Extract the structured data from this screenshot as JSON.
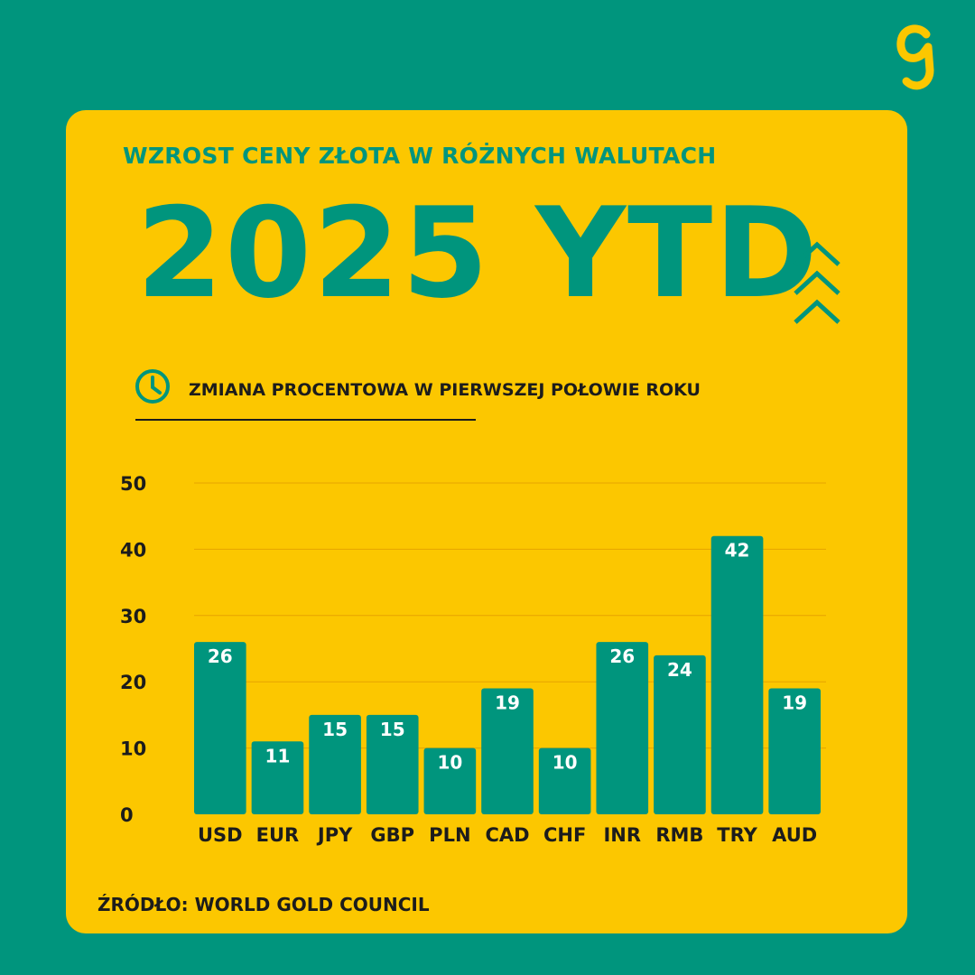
{
  "header": {
    "subtitle": "WZROST CENY ZŁOTA W RÓŻNYCH WALUTACH",
    "title": "2025 YTD",
    "caption": "ZMIANA PROCENTOWA W PIERWSZEJ POŁOWIE ROKU"
  },
  "footer": {
    "source": "ŹRÓDŁO: WORLD GOLD COUNCIL"
  },
  "icons": {
    "logo": "g-logo-icon",
    "chevrons": "triple-chevron-up-icon",
    "clock": "clock-icon"
  },
  "colors": {
    "background": "#00957d",
    "card": "#fcc700",
    "bar": "#00957d",
    "text": "#1c1c1c",
    "label": "#ffffff"
  },
  "chart_data": {
    "type": "bar",
    "title": "",
    "xlabel": "",
    "ylabel": "",
    "categories": [
      "USD",
      "EUR",
      "JPY",
      "GBP",
      "PLN",
      "CAD",
      "CHF",
      "INR",
      "RMB",
      "TRY",
      "AUD"
    ],
    "values": [
      26,
      11,
      15,
      15,
      10,
      19,
      10,
      26,
      24,
      42,
      19
    ],
    "ylim": [
      0,
      50
    ],
    "yticks": [
      0,
      10,
      20,
      30,
      40,
      50
    ],
    "grid": true,
    "legend": "none"
  }
}
